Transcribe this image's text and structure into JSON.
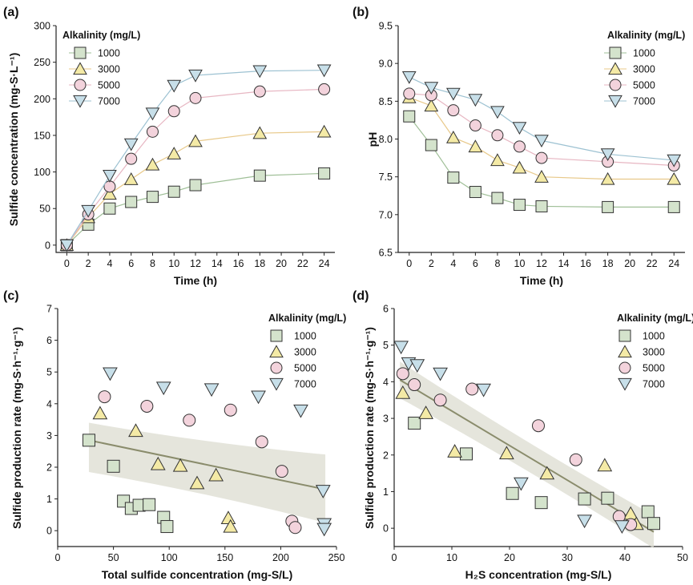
{
  "figure": {
    "legend_title": "Alkalinity (mg/L)",
    "series_names": [
      "1000",
      "3000",
      "5000",
      "7000"
    ],
    "colors": {
      "s1000": {
        "fill": "#d4e3cc",
        "line": "#9fbf97"
      },
      "s3000": {
        "fill": "#f4eaa6",
        "line": "#e8c98a"
      },
      "s5000": {
        "fill": "#f3d3dc",
        "line": "#e7b6c2"
      },
      "s7000": {
        "fill": "#c7dfe9",
        "line": "#9dc2d2"
      },
      "stroke": "#333333",
      "fit_line": "#8a8c6c",
      "band": "#dcdcd0"
    },
    "markers": {
      "s1000": "square",
      "s3000": "triangle-up",
      "s5000": "circle",
      "s7000": "triangle-down"
    }
  },
  "chart_data": [
    {
      "panel": "(a)",
      "type": "line",
      "xlabel": "Time (h)",
      "ylabel": "Sulfide concentration (mg-S·L⁻¹)",
      "xlim": [
        -1,
        25
      ],
      "ylim": [
        -10,
        300
      ],
      "xticks": [
        0,
        2,
        4,
        6,
        8,
        10,
        12,
        14,
        16,
        18,
        20,
        22,
        24
      ],
      "yticks": [
        0,
        50,
        100,
        150,
        200,
        250,
        300
      ],
      "legend_position": "top-left",
      "x": [
        0,
        2,
        4,
        6,
        8,
        10,
        12,
        18,
        24
      ],
      "series": [
        {
          "name": "1000",
          "values": [
            0,
            28,
            50,
            59,
            66,
            73,
            82,
            95,
            98
          ]
        },
        {
          "name": "3000",
          "values": [
            0,
            38,
            70,
            90,
            110,
            125,
            142,
            153,
            155
          ]
        },
        {
          "name": "5000",
          "values": [
            0,
            42,
            80,
            118,
            155,
            183,
            201,
            210,
            213
          ]
        },
        {
          "name": "7000",
          "values": [
            0,
            47,
            95,
            138,
            180,
            218,
            232,
            238,
            239
          ]
        }
      ]
    },
    {
      "panel": "(b)",
      "type": "line",
      "xlabel": "Time (h)",
      "ylabel": "pH",
      "xlim": [
        -1,
        25
      ],
      "ylim": [
        6.5,
        9.5
      ],
      "xticks": [
        0,
        2,
        4,
        6,
        8,
        10,
        12,
        14,
        16,
        18,
        20,
        22,
        24
      ],
      "yticks": [
        6.5,
        7.0,
        7.5,
        8.0,
        8.5,
        9.0,
        9.5
      ],
      "legend_position": "top-right",
      "x": [
        0,
        2,
        4,
        6,
        8,
        10,
        12,
        18,
        24
      ],
      "series": [
        {
          "name": "1000",
          "values": [
            8.3,
            7.92,
            7.49,
            7.3,
            7.22,
            7.13,
            7.11,
            7.1,
            7.1
          ]
        },
        {
          "name": "3000",
          "values": [
            8.55,
            8.44,
            8.02,
            7.9,
            7.72,
            7.62,
            7.5,
            7.47,
            7.47
          ]
        },
        {
          "name": "5000",
          "values": [
            8.6,
            8.58,
            8.38,
            8.18,
            8.05,
            7.9,
            7.75,
            7.7,
            7.65
          ]
        },
        {
          "name": "7000",
          "values": [
            8.82,
            8.68,
            8.6,
            8.52,
            8.36,
            8.15,
            7.98,
            7.8,
            7.72
          ]
        }
      ]
    },
    {
      "panel": "(c)",
      "type": "scatter",
      "xlabel": "Total sulfide concentration (mg-S/L)",
      "ylabel": "Sulfide production rate (mg-S·h⁻¹·g⁻¹)",
      "xlim": [
        0,
        250
      ],
      "ylim": [
        -0.5,
        7
      ],
      "xticks": [
        0,
        50,
        100,
        150,
        200,
        250
      ],
      "yticks": [
        0,
        1,
        2,
        3,
        4,
        5,
        6,
        7
      ],
      "legend_position": "top-right",
      "series": [
        {
          "name": "1000",
          "points": [
            [
              28,
              2.85
            ],
            [
              50,
              2.03
            ],
            [
              59,
              0.93
            ],
            [
              66,
              0.7
            ],
            [
              73,
              0.8
            ],
            [
              82,
              0.82
            ],
            [
              95,
              0.42
            ],
            [
              98,
              0.13
            ]
          ]
        },
        {
          "name": "3000",
          "points": [
            [
              38,
              3.7
            ],
            [
              70,
              3.15
            ],
            [
              90,
              2.1
            ],
            [
              110,
              2.05
            ],
            [
              125,
              1.5
            ],
            [
              142,
              1.75
            ],
            [
              153,
              0.4
            ],
            [
              155,
              0.13
            ]
          ]
        },
        {
          "name": "5000",
          "points": [
            [
              42,
              4.22
            ],
            [
              80,
              3.92
            ],
            [
              118,
              3.48
            ],
            [
              155,
              3.8
            ],
            [
              183,
              2.8
            ],
            [
              201,
              1.87
            ],
            [
              210,
              0.3
            ],
            [
              213,
              0.1
            ]
          ]
        },
        {
          "name": "7000",
          "points": [
            [
              47,
              4.95
            ],
            [
              95,
              4.5
            ],
            [
              138,
              4.45
            ],
            [
              180,
              4.22
            ],
            [
              218,
              3.78
            ],
            [
              238,
              1.25
            ],
            [
              239,
              0.2
            ],
            [
              239,
              0.05
            ]
          ]
        }
      ],
      "fit": {
        "x": [
          28,
          240
        ],
        "y": [
          2.85,
          1.3
        ]
      },
      "band": {
        "x": [
          28,
          240
        ],
        "upper": [
          3.4,
          2.4
        ],
        "lower": [
          1.85,
          0.25
        ]
      }
    },
    {
      "panel": "(d)",
      "type": "scatter",
      "xlabel": "H₂S concentration (mg-S/L)",
      "ylabel": "Sulfide production rate (mg-S·h⁻¹·g⁻¹)",
      "xlim": [
        0,
        50
      ],
      "ylim": [
        -0.5,
        6
      ],
      "xticks": [
        0,
        10,
        20,
        30,
        40,
        50
      ],
      "yticks": [
        0,
        1,
        2,
        3,
        4,
        5,
        6
      ],
      "legend_position": "top-right",
      "series": [
        {
          "name": "1000",
          "points": [
            [
              3.5,
              2.87
            ],
            [
              12.5,
              2.03
            ],
            [
              20.5,
              0.95
            ],
            [
              25.5,
              0.7
            ],
            [
              33,
              0.8
            ],
            [
              37,
              0.82
            ],
            [
              44,
              0.45
            ],
            [
              45,
              0.13
            ]
          ]
        },
        {
          "name": "3000",
          "points": [
            [
              1.5,
              3.7
            ],
            [
              5.5,
              3.15
            ],
            [
              10.5,
              2.1
            ],
            [
              19.5,
              2.05
            ],
            [
              26.5,
              1.5
            ],
            [
              36.5,
              1.72
            ],
            [
              41,
              0.4
            ],
            [
              42,
              0.12
            ]
          ]
        },
        {
          "name": "5000",
          "points": [
            [
              1.5,
              4.22
            ],
            [
              3.5,
              3.92
            ],
            [
              8,
              3.5
            ],
            [
              13.5,
              3.8
            ],
            [
              25,
              2.8
            ],
            [
              31.5,
              1.87
            ],
            [
              39,
              0.32
            ],
            [
              41,
              0.1
            ]
          ]
        },
        {
          "name": "7000",
          "points": [
            [
              1.2,
              4.95
            ],
            [
              2.5,
              4.5
            ],
            [
              4,
              4.45
            ],
            [
              8,
              4.22
            ],
            [
              15.5,
              3.78
            ],
            [
              22,
              1.22
            ],
            [
              33,
              0.2
            ],
            [
              39.5,
              0.05
            ]
          ]
        }
      ],
      "fit": {
        "x": [
          1,
          45
        ],
        "y": [
          4.05,
          -0.1
        ]
      },
      "band": {
        "x": [
          1,
          45
        ],
        "upper": [
          4.55,
          0.35
        ],
        "lower": [
          3.55,
          -0.55
        ]
      }
    }
  ]
}
